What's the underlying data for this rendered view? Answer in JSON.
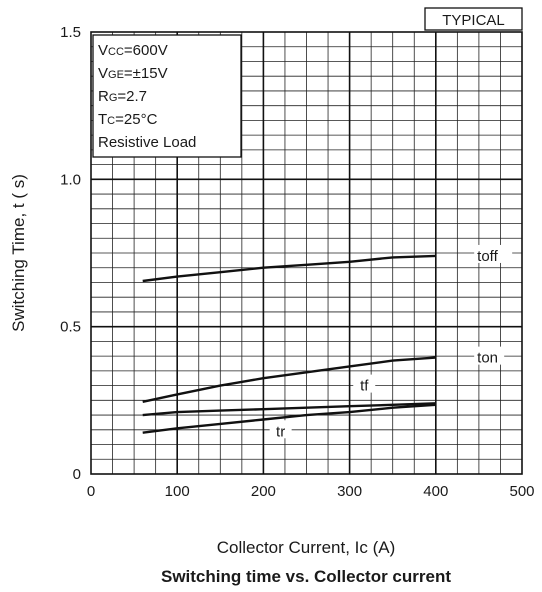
{
  "chart_data": {
    "type": "line",
    "title": "Switching time vs. Collector current",
    "xlabel": "Collector Current, Ic (A)",
    "ylabel": "Switching Time, t ( s)",
    "xlim": [
      0,
      500
    ],
    "ylim": [
      0,
      1.5
    ],
    "x_ticks": [
      "0",
      "100",
      "200",
      "300",
      "400",
      "500"
    ],
    "y_ticks": [
      "0",
      "0.5",
      "1.0",
      "1.5"
    ],
    "grid": true,
    "badge": "TYPICAL",
    "conditions": [
      {
        "main": "V",
        "sub": "CC",
        "rest": "=600V"
      },
      {
        "main": "V",
        "sub": "GE",
        "rest": "=±15V"
      },
      {
        "main": "R",
        "sub": "G",
        "rest": "=2.7"
      },
      {
        "main": "T",
        "sub": "C",
        "rest": "=25°C"
      },
      {
        "main": "Resistive Load",
        "sub": "",
        "rest": ""
      }
    ],
    "series": [
      {
        "name": "toff",
        "x": [
          60,
          100,
          150,
          200,
          250,
          300,
          350,
          400
        ],
        "y": [
          0.655,
          0.67,
          0.685,
          0.7,
          0.71,
          0.72,
          0.735,
          0.74
        ]
      },
      {
        "name": "ton",
        "x": [
          60,
          100,
          150,
          200,
          250,
          300,
          350,
          400
        ],
        "y": [
          0.245,
          0.27,
          0.3,
          0.325,
          0.345,
          0.365,
          0.385,
          0.395
        ]
      },
      {
        "name": "tf",
        "x": [
          60,
          100,
          150,
          200,
          250,
          300,
          350,
          400
        ],
        "y": [
          0.2,
          0.21,
          0.215,
          0.22,
          0.225,
          0.23,
          0.235,
          0.24
        ]
      },
      {
        "name": "tr",
        "x": [
          60,
          100,
          150,
          200,
          250,
          300,
          350,
          400
        ],
        "y": [
          0.14,
          0.155,
          0.17,
          0.185,
          0.2,
          0.21,
          0.225,
          0.235
        ]
      }
    ]
  }
}
